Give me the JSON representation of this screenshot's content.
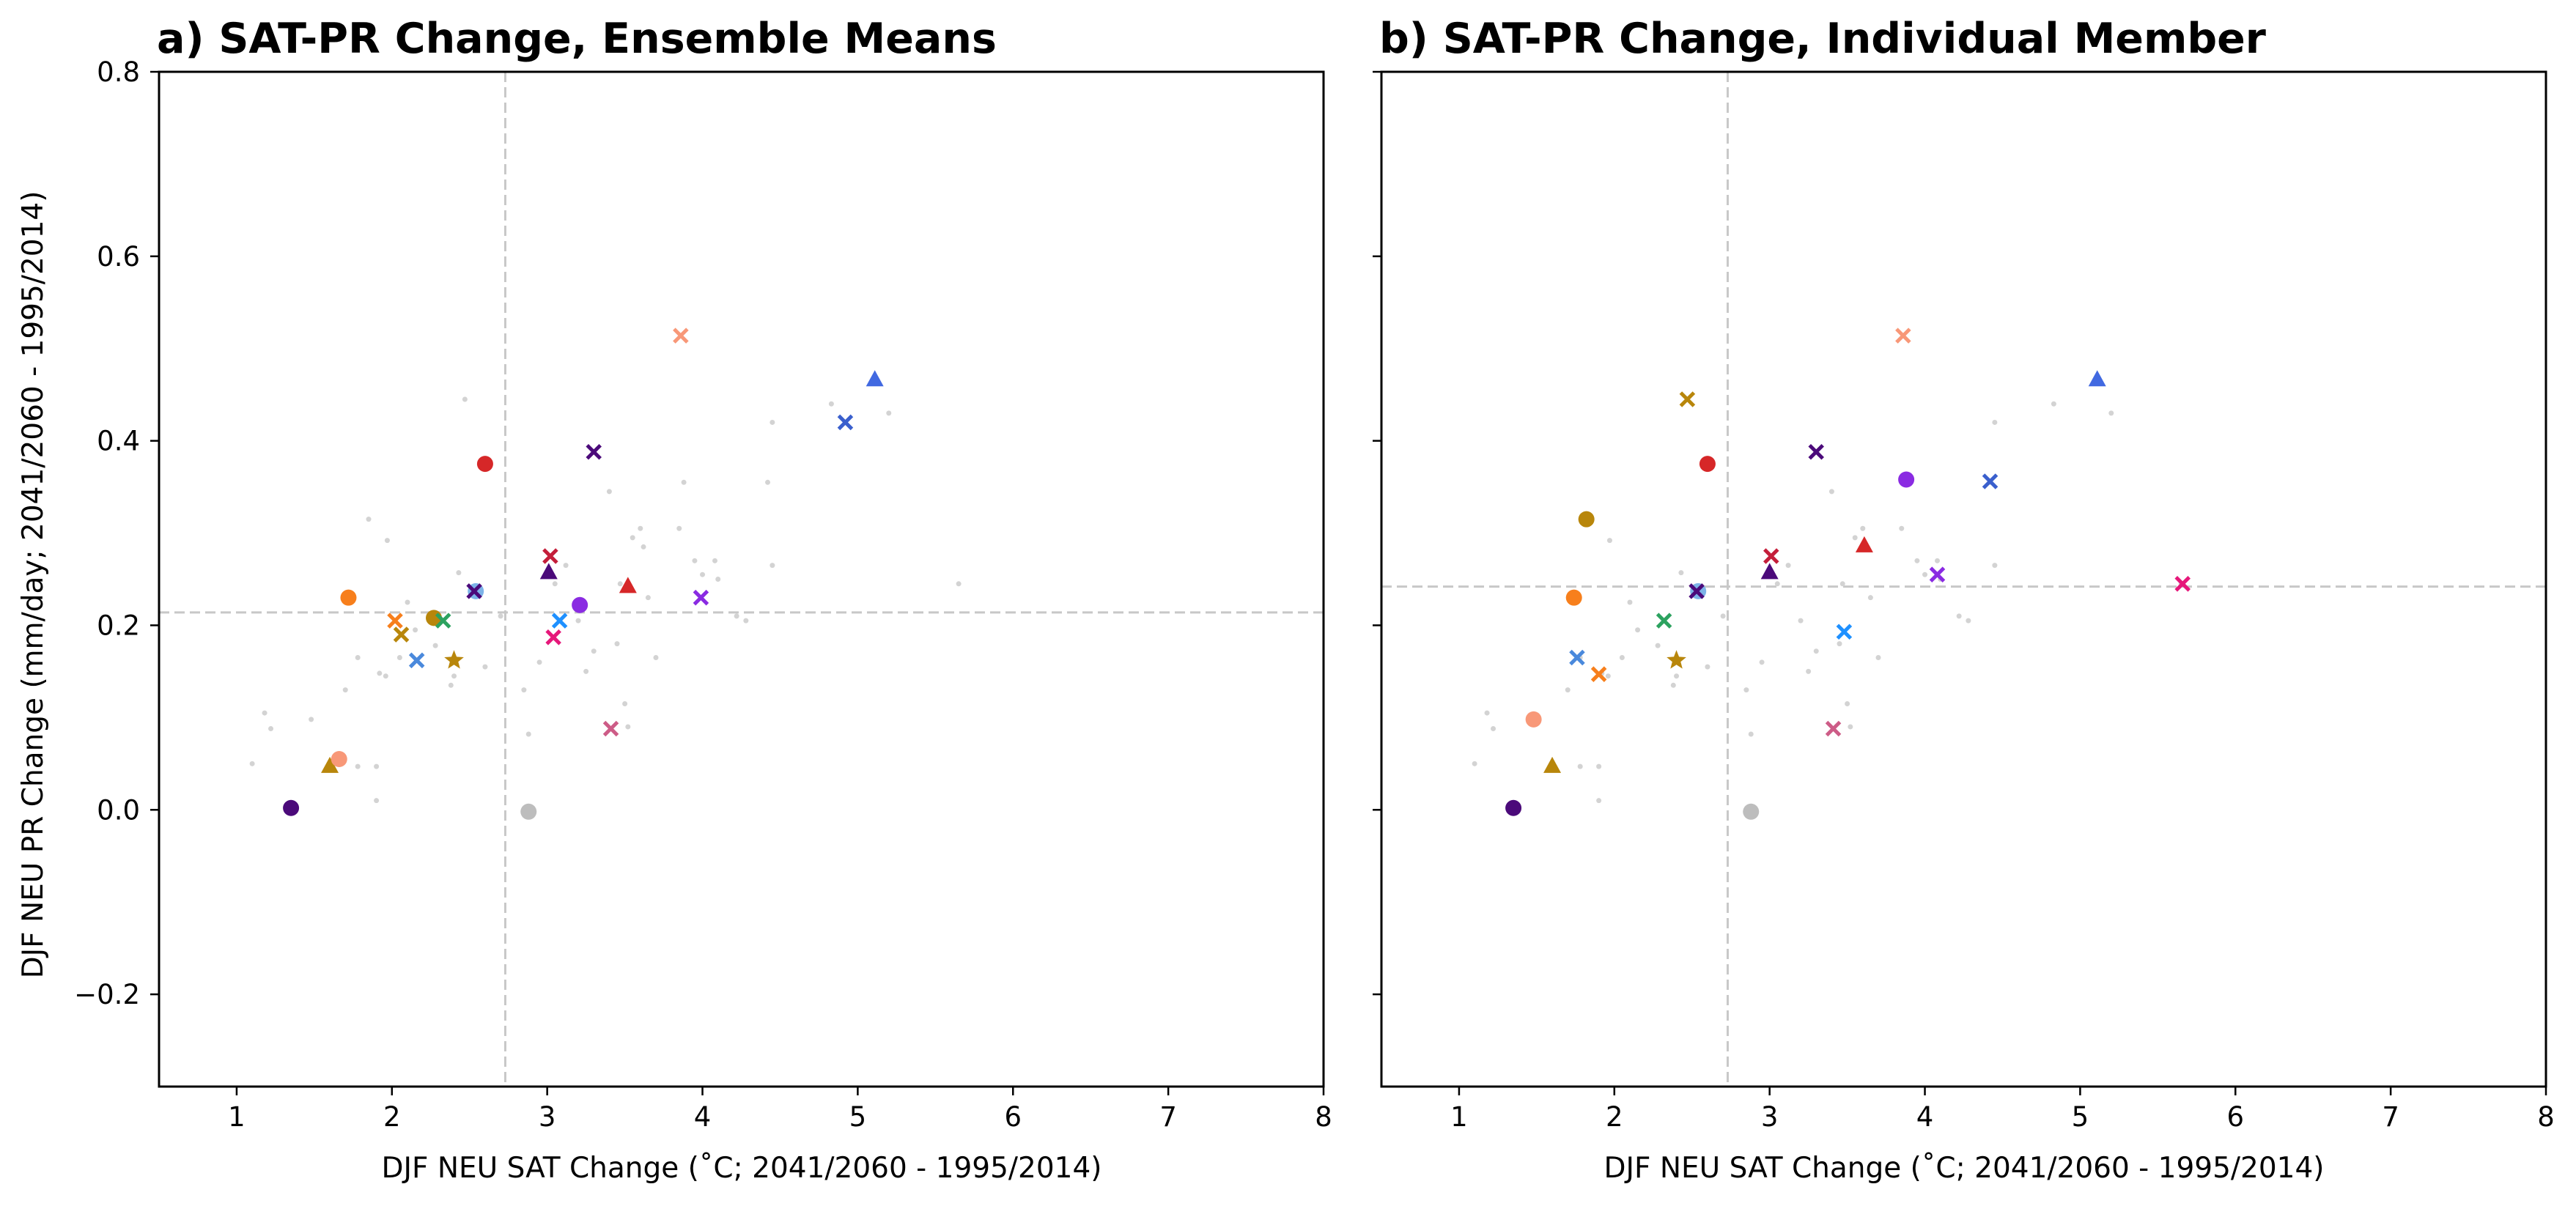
{
  "figure": {
    "ylabel_shared": "DJF NEU PR Change (mm/day; 2041/2060 - 1995/2014)"
  },
  "panels": [
    {
      "title": "a) SAT-PR Change, Ensemble Means",
      "xlabel": "DJF NEU SAT Change (˚C; 2041/2060 - 1995/2014)"
    },
    {
      "title": "b) SAT-PR Change, Individual Member",
      "xlabel": "DJF NEU SAT Change (˚C; 2041/2060 - 1995/2014)"
    }
  ],
  "chart_data": [
    {
      "type": "scatter",
      "title": "a) SAT-PR Change, Ensemble Means",
      "xlabel": "DJF NEU SAT Change (˚C; 2041/2060 - 1995/2014)",
      "ylabel": "DJF NEU PR Change (mm/day; 2041/2060 - 1995/2014)",
      "xlim": [
        0.5,
        8
      ],
      "ylim": [
        -0.3,
        0.8
      ],
      "xticks": [
        1,
        2,
        3,
        4,
        5,
        6,
        7,
        8
      ],
      "yticks": [
        -0.2,
        0.0,
        0.2,
        0.4,
        0.6,
        0.8
      ],
      "ytick_labels": [
        "−0.2",
        "0.0",
        "0.2",
        "0.4",
        "0.6",
        "0.8"
      ],
      "grid": false,
      "reference_lines": {
        "x": 2.73,
        "y": 0.214,
        "color": "#c8c8c8",
        "style": "dashed"
      },
      "background_points": [
        [
          1.1,
          0.05
        ],
        [
          1.18,
          0.105
        ],
        [
          1.22,
          0.088
        ],
        [
          1.48,
          0.098
        ],
        [
          1.7,
          0.13
        ],
        [
          1.78,
          0.165
        ],
        [
          1.85,
          0.315
        ],
        [
          1.97,
          0.292
        ],
        [
          1.92,
          0.148
        ],
        [
          1.96,
          0.145
        ],
        [
          1.9,
          0.047
        ],
        [
          1.9,
          0.01
        ],
        [
          1.78,
          0.047
        ],
        [
          2.05,
          0.165
        ],
        [
          2.1,
          0.225
        ],
        [
          2.15,
          0.195
        ],
        [
          2.28,
          0.178
        ],
        [
          2.38,
          0.135
        ],
        [
          2.4,
          0.145
        ],
        [
          2.43,
          0.257
        ],
        [
          2.47,
          0.445
        ],
        [
          2.6,
          0.155
        ],
        [
          2.7,
          0.21
        ],
        [
          2.85,
          0.13
        ],
        [
          2.88,
          0.082
        ],
        [
          2.95,
          0.16
        ],
        [
          3.05,
          0.245
        ],
        [
          3.12,
          0.265
        ],
        [
          3.2,
          0.205
        ],
        [
          3.25,
          0.15
        ],
        [
          3.3,
          0.172
        ],
        [
          3.4,
          0.345
        ],
        [
          3.45,
          0.18
        ],
        [
          3.47,
          0.245
        ],
        [
          3.5,
          0.115
        ],
        [
          3.52,
          0.09
        ],
        [
          3.55,
          0.295
        ],
        [
          3.6,
          0.305
        ],
        [
          3.62,
          0.285
        ],
        [
          3.65,
          0.23
        ],
        [
          3.7,
          0.165
        ],
        [
          3.85,
          0.305
        ],
        [
          3.88,
          0.355
        ],
        [
          3.95,
          0.27
        ],
        [
          4.0,
          0.255
        ],
        [
          4.08,
          0.27
        ],
        [
          4.1,
          0.25
        ],
        [
          4.22,
          0.21
        ],
        [
          4.28,
          0.205
        ],
        [
          4.42,
          0.355
        ],
        [
          4.45,
          0.265
        ],
        [
          4.45,
          0.42
        ],
        [
          4.83,
          0.44
        ],
        [
          5.2,
          0.43
        ],
        [
          5.65,
          0.245
        ]
      ],
      "series": [
        {
          "marker": "circle",
          "color": "#4b0a7a",
          "x": [
            1.35
          ],
          "y": [
            0.002
          ]
        },
        {
          "marker": "triangle",
          "color": "#b8860b",
          "x": [
            1.6
          ],
          "y": [
            0.048
          ]
        },
        {
          "marker": "circle",
          "color": "#f89878",
          "x": [
            1.66
          ],
          "y": [
            0.055
          ]
        },
        {
          "marker": "circle",
          "color": "#f77f1c",
          "x": [
            1.72
          ],
          "y": [
            0.23
          ]
        },
        {
          "marker": "x",
          "color": "#f77f1c",
          "x": [
            2.02
          ],
          "y": [
            0.205
          ]
        },
        {
          "marker": "x",
          "color": "#b8860b",
          "x": [
            2.06
          ],
          "y": [
            0.19
          ]
        },
        {
          "marker": "x",
          "color": "#4a89dc",
          "x": [
            2.16
          ],
          "y": [
            0.162
          ]
        },
        {
          "marker": "circle",
          "color": "#b8860b",
          "x": [
            2.27
          ],
          "y": [
            0.208
          ]
        },
        {
          "marker": "x",
          "color": "#2ca25f",
          "x": [
            2.33
          ],
          "y": [
            0.205
          ]
        },
        {
          "marker": "star",
          "color": "#b8860b",
          "x": [
            2.4
          ],
          "y": [
            0.162
          ]
        },
        {
          "marker": "circle",
          "color": "#d62728",
          "x": [
            2.6
          ],
          "y": [
            0.375
          ]
        },
        {
          "marker": "circle",
          "color": "#7db3e8",
          "x": [
            2.54
          ],
          "y": [
            0.237
          ]
        },
        {
          "marker": "x",
          "color": "#4b0a7a",
          "x": [
            2.53
          ],
          "y": [
            0.237
          ]
        },
        {
          "marker": "circle",
          "color": "#bdbdbd",
          "x": [
            2.88
          ],
          "y": [
            -0.002
          ]
        },
        {
          "marker": "triangle",
          "color": "#4b0a7a",
          "x": [
            3.01
          ],
          "y": [
            0.258
          ]
        },
        {
          "marker": "x",
          "color": "#c41e3a",
          "x": [
            3.02
          ],
          "y": [
            0.275
          ]
        },
        {
          "marker": "x",
          "color": "#e6177a",
          "x": [
            3.04
          ],
          "y": [
            0.187
          ]
        },
        {
          "marker": "x",
          "color": "#1e90ff",
          "x": [
            3.08
          ],
          "y": [
            0.205
          ]
        },
        {
          "marker": "circle",
          "color": "#8a2be2",
          "x": [
            3.21
          ],
          "y": [
            0.222
          ]
        },
        {
          "marker": "x",
          "color": "#4b0a7a",
          "x": [
            3.3
          ],
          "y": [
            0.388
          ]
        },
        {
          "marker": "x",
          "color": "#cd5c87",
          "x": [
            3.41
          ],
          "y": [
            0.088
          ]
        },
        {
          "marker": "triangle",
          "color": "#d62728",
          "x": [
            3.52
          ],
          "y": [
            0.243
          ]
        },
        {
          "marker": "x",
          "color": "#f89878",
          "x": [
            3.86
          ],
          "y": [
            0.514
          ]
        },
        {
          "marker": "x",
          "color": "#8a2be2",
          "x": [
            3.99
          ],
          "y": [
            0.23
          ]
        },
        {
          "marker": "x",
          "color": "#3a5fcd",
          "x": [
            4.92
          ],
          "y": [
            0.42
          ]
        },
        {
          "marker": "triangle",
          "color": "#4169e1",
          "x": [
            5.11
          ],
          "y": [
            0.467
          ]
        }
      ]
    },
    {
      "type": "scatter",
      "title": "b) SAT-PR Change, Individual Member",
      "xlabel": "DJF NEU SAT Change (˚C; 2041/2060 - 1995/2014)",
      "ylabel": "DJF NEU PR Change (mm/day; 2041/2060 - 1995/2014)",
      "xlim": [
        0.5,
        8
      ],
      "ylim": [
        -0.3,
        0.8
      ],
      "xticks": [
        1,
        2,
        3,
        4,
        5,
        6,
        7,
        8
      ],
      "yticks": [
        -0.2,
        0.0,
        0.2,
        0.4,
        0.6,
        0.8
      ],
      "grid": false,
      "reference_lines": {
        "x": 2.73,
        "y": 0.242,
        "color": "#c8c8c8",
        "style": "dashed"
      },
      "background_points": [
        [
          1.1,
          0.05
        ],
        [
          1.18,
          0.105
        ],
        [
          1.22,
          0.088
        ],
        [
          1.48,
          0.098
        ],
        [
          1.7,
          0.13
        ],
        [
          1.78,
          0.165
        ],
        [
          1.85,
          0.315
        ],
        [
          1.97,
          0.292
        ],
        [
          1.92,
          0.148
        ],
        [
          1.96,
          0.145
        ],
        [
          1.9,
          0.047
        ],
        [
          1.9,
          0.01
        ],
        [
          1.78,
          0.047
        ],
        [
          2.05,
          0.165
        ],
        [
          2.1,
          0.225
        ],
        [
          2.15,
          0.195
        ],
        [
          2.28,
          0.178
        ],
        [
          2.38,
          0.135
        ],
        [
          2.4,
          0.145
        ],
        [
          2.43,
          0.257
        ],
        [
          2.47,
          0.445
        ],
        [
          2.6,
          0.155
        ],
        [
          2.7,
          0.21
        ],
        [
          2.85,
          0.13
        ],
        [
          2.88,
          0.082
        ],
        [
          2.95,
          0.16
        ],
        [
          3.05,
          0.245
        ],
        [
          3.12,
          0.265
        ],
        [
          3.2,
          0.205
        ],
        [
          3.25,
          0.15
        ],
        [
          3.3,
          0.172
        ],
        [
          3.4,
          0.345
        ],
        [
          3.45,
          0.18
        ],
        [
          3.47,
          0.245
        ],
        [
          3.5,
          0.115
        ],
        [
          3.52,
          0.09
        ],
        [
          3.55,
          0.295
        ],
        [
          3.6,
          0.305
        ],
        [
          3.62,
          0.285
        ],
        [
          3.65,
          0.23
        ],
        [
          3.7,
          0.165
        ],
        [
          3.85,
          0.305
        ],
        [
          3.88,
          0.355
        ],
        [
          3.95,
          0.27
        ],
        [
          4.0,
          0.255
        ],
        [
          4.08,
          0.27
        ],
        [
          4.1,
          0.25
        ],
        [
          4.22,
          0.21
        ],
        [
          4.28,
          0.205
        ],
        [
          4.42,
          0.355
        ],
        [
          4.45,
          0.265
        ],
        [
          4.45,
          0.42
        ],
        [
          4.83,
          0.44
        ],
        [
          5.2,
          0.43
        ],
        [
          5.65,
          0.245
        ]
      ],
      "series": [
        {
          "marker": "circle",
          "color": "#4b0a7a",
          "x": [
            1.35
          ],
          "y": [
            0.002
          ]
        },
        {
          "marker": "circle",
          "color": "#f89878",
          "x": [
            1.48
          ],
          "y": [
            0.098
          ]
        },
        {
          "marker": "triangle",
          "color": "#b8860b",
          "x": [
            1.6
          ],
          "y": [
            0.048
          ]
        },
        {
          "marker": "circle",
          "color": "#f77f1c",
          "x": [
            1.74
          ],
          "y": [
            0.23
          ]
        },
        {
          "marker": "x",
          "color": "#4a89dc",
          "x": [
            1.76
          ],
          "y": [
            0.165
          ]
        },
        {
          "marker": "circle",
          "color": "#b8860b",
          "x": [
            1.82
          ],
          "y": [
            0.315
          ]
        },
        {
          "marker": "x",
          "color": "#f77f1c",
          "x": [
            1.9
          ],
          "y": [
            0.147
          ]
        },
        {
          "marker": "x",
          "color": "#2ca25f",
          "x": [
            2.32
          ],
          "y": [
            0.205
          ]
        },
        {
          "marker": "star",
          "color": "#b8860b",
          "x": [
            2.4
          ],
          "y": [
            0.162
          ]
        },
        {
          "marker": "x",
          "color": "#b8860b",
          "x": [
            2.47
          ],
          "y": [
            0.445
          ]
        },
        {
          "marker": "circle",
          "color": "#7db3e8",
          "x": [
            2.54
          ],
          "y": [
            0.237
          ]
        },
        {
          "marker": "x",
          "color": "#4b0a7a",
          "x": [
            2.53
          ],
          "y": [
            0.237
          ]
        },
        {
          "marker": "circle",
          "color": "#d62728",
          "x": [
            2.6
          ],
          "y": [
            0.375
          ]
        },
        {
          "marker": "circle",
          "color": "#bdbdbd",
          "x": [
            2.88
          ],
          "y": [
            -0.002
          ]
        },
        {
          "marker": "triangle",
          "color": "#4b0a7a",
          "x": [
            3.0
          ],
          "y": [
            0.258
          ]
        },
        {
          "marker": "x",
          "color": "#c41e3a",
          "x": [
            3.01
          ],
          "y": [
            0.275
          ]
        },
        {
          "marker": "x",
          "color": "#4b0a7a",
          "x": [
            3.3
          ],
          "y": [
            0.388
          ]
        },
        {
          "marker": "x",
          "color": "#cd5c87",
          "x": [
            3.41
          ],
          "y": [
            0.088
          ]
        },
        {
          "marker": "x",
          "color": "#1e90ff",
          "x": [
            3.48
          ],
          "y": [
            0.193
          ]
        },
        {
          "marker": "triangle",
          "color": "#d62728",
          "x": [
            3.61
          ],
          "y": [
            0.287
          ]
        },
        {
          "marker": "x",
          "color": "#f89878",
          "x": [
            3.86
          ],
          "y": [
            0.514
          ]
        },
        {
          "marker": "circle",
          "color": "#8a2be2",
          "x": [
            3.88
          ],
          "y": [
            0.358
          ]
        },
        {
          "marker": "x",
          "color": "#8a2be2",
          "x": [
            4.08
          ],
          "y": [
            0.255
          ]
        },
        {
          "marker": "x",
          "color": "#3a5fcd",
          "x": [
            4.42
          ],
          "y": [
            0.356
          ]
        },
        {
          "marker": "triangle",
          "color": "#4169e1",
          "x": [
            5.11
          ],
          "y": [
            0.467
          ]
        },
        {
          "marker": "x",
          "color": "#e6177a",
          "x": [
            5.66
          ],
          "y": [
            0.245
          ]
        }
      ]
    }
  ]
}
